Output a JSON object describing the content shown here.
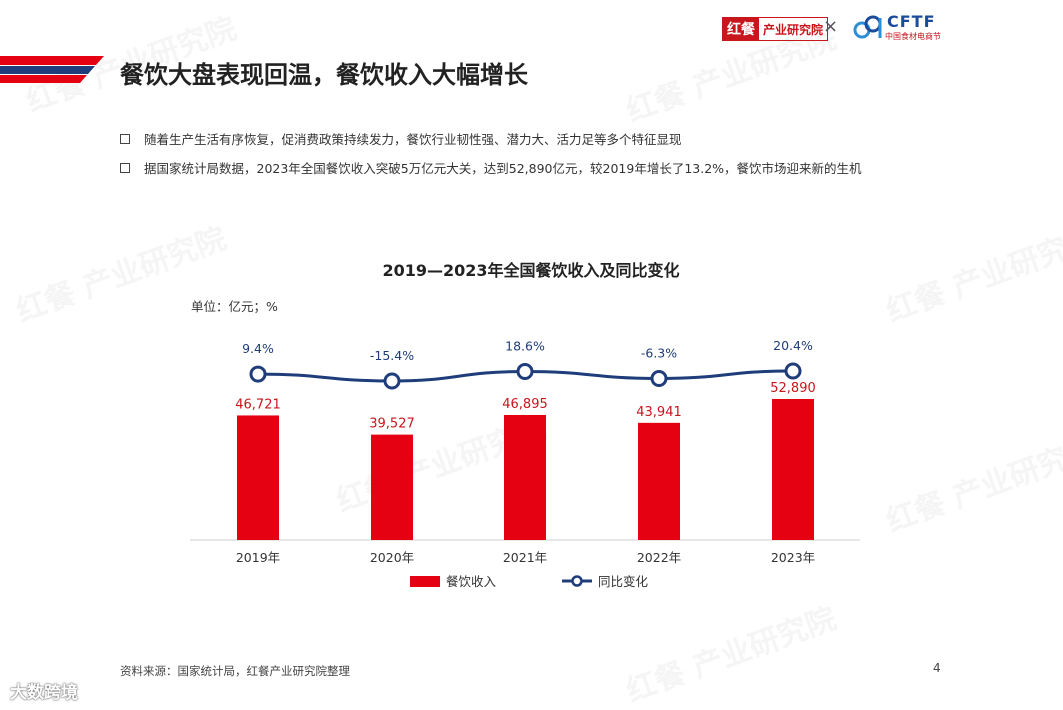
{
  "header": {
    "logo_mark": "红餐",
    "logo_text": "产业研究院",
    "times": "×",
    "cftf_letters": "CFTF",
    "cftf_sub": "中国食材电商节"
  },
  "title": "餐饮大盘表现回温，餐饮收入大幅增长",
  "bullets": [
    "随着生产生活有序恢复，促消费政策持续发力，餐饮行业韧性强、潜力大、活力足等多个特征显现",
    "据国家统计局数据，2023年全国餐饮收入突破5万亿元大关，达到52,890亿元，较2019年增长了13.2%，餐饮市场迎来新的生机"
  ],
  "chart_data": {
    "type": "bar",
    "title": "2019—2023年全国餐饮收入及同比变化",
    "unit_label": "单位：亿元；%",
    "categories": [
      "2019年",
      "2020年",
      "2021年",
      "2022年",
      "2023年"
    ],
    "series": [
      {
        "name": "餐饮收入",
        "type": "bar",
        "color": "#e50012",
        "values": [
          46721,
          39527,
          46895,
          43941,
          52890
        ],
        "labels": [
          "46,721",
          "39,527",
          "46,895",
          "43,941",
          "52,890"
        ]
      },
      {
        "name": "同比变化",
        "type": "line",
        "color": "#1f3d7a",
        "values": [
          9.4,
          -15.4,
          18.6,
          -6.3,
          20.4
        ],
        "labels": [
          "9.4%",
          "-15.4%",
          "18.6%",
          "-6.3%",
          "20.4%"
        ]
      }
    ],
    "legend_position": "bottom",
    "grid": false
  },
  "footer": {
    "source": "资料来源：国家统计局，红餐产业研究院整理",
    "page": "4",
    "watermark_bottom": "大数跨境"
  },
  "watermark_text": "红餐 产业研究院"
}
